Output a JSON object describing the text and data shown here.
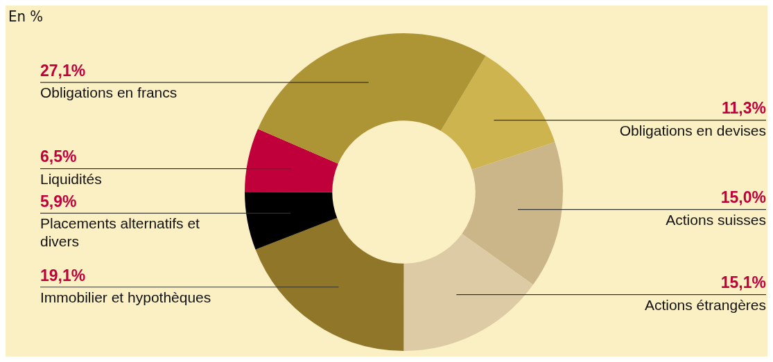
{
  "chart_data": {
    "type": "donut",
    "title": "En %",
    "categories": [
      "Obligations en devises",
      "Actions suisses",
      "Actions étrangères",
      "Immobilier et hypothèques",
      "Placements alternatifs et divers",
      "Liquidités",
      "Obligations en francs"
    ],
    "values": [
      11.3,
      15.0,
      15.1,
      19.1,
      5.9,
      6.5,
      27.1
    ],
    "value_labels": [
      "11,3%",
      "15,0%",
      "15,1%",
      "19,1%",
      "5,9%",
      "6,5%",
      "27,1%"
    ],
    "colors": [
      "#cdb44f",
      "#cbb68a",
      "#dccba5",
      "#8f7629",
      "#000000",
      "#c0003a",
      "#ad9535"
    ],
    "legend": false
  }
}
